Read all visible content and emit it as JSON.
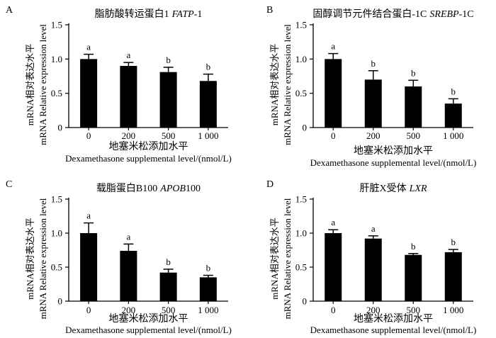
{
  "chart_data": [
    {
      "panel": "A",
      "type": "bar",
      "title_cn": "脂肪酸转运蛋白1",
      "title_gene": "FATP",
      "title_suffix": "-1",
      "ylabel_cn": "mRNA相对表达水平",
      "ylabel_en": "mRNA Relative expression level",
      "xlabel_cn": "地塞米松添加水平",
      "xlabel_en": "Dexamethasone supplemental level/(nmol/L)",
      "categories": [
        "0",
        "200",
        "500",
        "1 000"
      ],
      "values": [
        1.0,
        0.9,
        0.81,
        0.68
      ],
      "errors": [
        0.07,
        0.05,
        0.07,
        0.1
      ],
      "letters": [
        "a",
        "a",
        "b",
        "b"
      ],
      "ylim": [
        0,
        1.5
      ],
      "yticks": [
        "0",
        "0.5",
        "1.0",
        "1.5"
      ],
      "bar_color": "#000000"
    },
    {
      "panel": "B",
      "type": "bar",
      "title_cn": "固醇调节元件结合蛋白-1C",
      "title_gene": "SREBP",
      "title_suffix": "-1C",
      "ylabel_cn": "mRNA相对表达水平",
      "ylabel_en": "mRNA Relative expression level",
      "xlabel_cn": "地塞米松添加水平",
      "xlabel_en": "Dexamethasone supplemental level/(nmol/L)",
      "categories": [
        "0",
        "200",
        "500",
        "1 000"
      ],
      "values": [
        1.0,
        0.7,
        0.6,
        0.35
      ],
      "errors": [
        0.08,
        0.13,
        0.09,
        0.07
      ],
      "letters": [
        "a",
        "b",
        "b",
        "b"
      ],
      "ylim": [
        0,
        1.5
      ],
      "yticks": [
        "0",
        "0.5",
        "1.0",
        "1.5"
      ],
      "bar_color": "#000000"
    },
    {
      "panel": "C",
      "type": "bar",
      "title_cn": "载脂蛋白B100",
      "title_gene": "APOB",
      "title_suffix": "100",
      "ylabel_cn": "mRNA相对表达水平",
      "ylabel_en": "mRNA Relative expression level",
      "xlabel_cn": "地塞米松添加水平",
      "xlabel_en": "Dexamethasone supplemental level/(nmol/L)",
      "categories": [
        "0",
        "200",
        "500",
        "1 000"
      ],
      "values": [
        1.0,
        0.74,
        0.42,
        0.35
      ],
      "errors": [
        0.15,
        0.1,
        0.05,
        0.03
      ],
      "letters": [
        "a",
        "a",
        "b",
        "b"
      ],
      "ylim": [
        0,
        1.5
      ],
      "yticks": [
        "0",
        "0.5",
        "1.0",
        "1.5"
      ],
      "bar_color": "#000000"
    },
    {
      "panel": "D",
      "type": "bar",
      "title_cn": "肝脏X受体",
      "title_gene": "LXR",
      "title_suffix": "",
      "ylabel_cn": "mRNA相对表达水平",
      "ylabel_en": "mRNA Relative expression level",
      "xlabel_cn": "地塞米松添加水平",
      "xlabel_en": "Dexamethasone supplemental level/(nmol/L)",
      "categories": [
        "0",
        "200",
        "500",
        "1 000"
      ],
      "values": [
        1.0,
        0.92,
        0.68,
        0.72
      ],
      "errors": [
        0.05,
        0.04,
        0.02,
        0.04
      ],
      "letters": [
        "a",
        "a",
        "b",
        "b"
      ],
      "ylim": [
        0,
        1.5
      ],
      "yticks": [
        "0",
        "0.5",
        "1.0",
        "1.5"
      ],
      "bar_color": "#000000"
    }
  ]
}
